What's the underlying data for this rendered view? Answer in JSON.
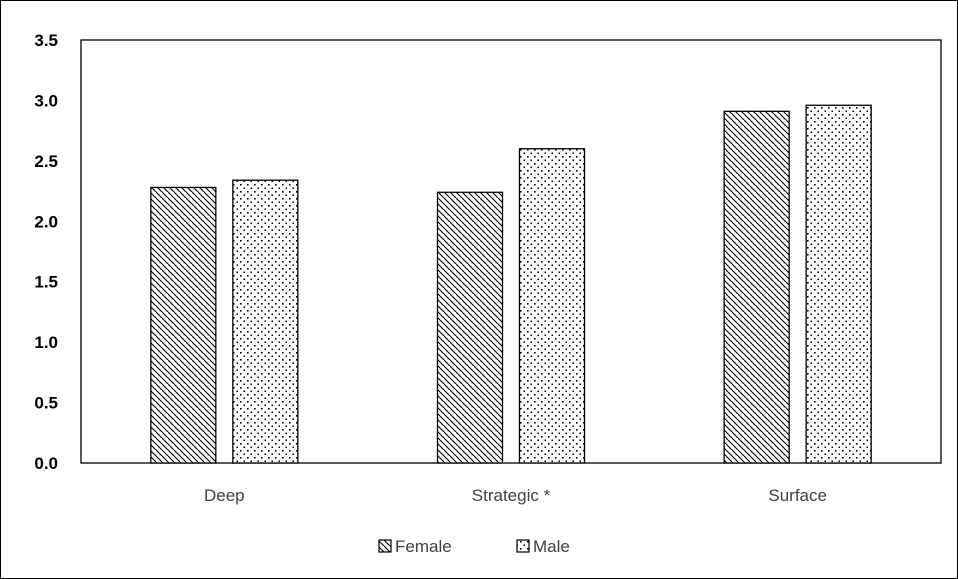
{
  "chart_data": {
    "type": "bar",
    "title": "",
    "xlabel": "",
    "ylabel": "",
    "categories": [
      "Deep",
      "Strategic *",
      "Surface"
    ],
    "series": [
      {
        "name": "Female",
        "values": [
          2.28,
          2.24,
          2.91
        ],
        "pattern": "diagonal-hatch"
      },
      {
        "name": "Male",
        "values": [
          2.34,
          2.6,
          2.96
        ],
        "pattern": "dots"
      }
    ],
    "ylim": [
      0.0,
      3.5
    ],
    "yticks": [
      "0.0",
      "0.5",
      "1.0",
      "1.5",
      "2.0",
      "2.5",
      "3.0",
      "3.5"
    ],
    "legend_position": "bottom",
    "grid": false,
    "colors": {
      "bar_fill": "#ffffff",
      "bar_stroke": "#000000",
      "pattern": "#000000",
      "axis": "#000000"
    }
  }
}
